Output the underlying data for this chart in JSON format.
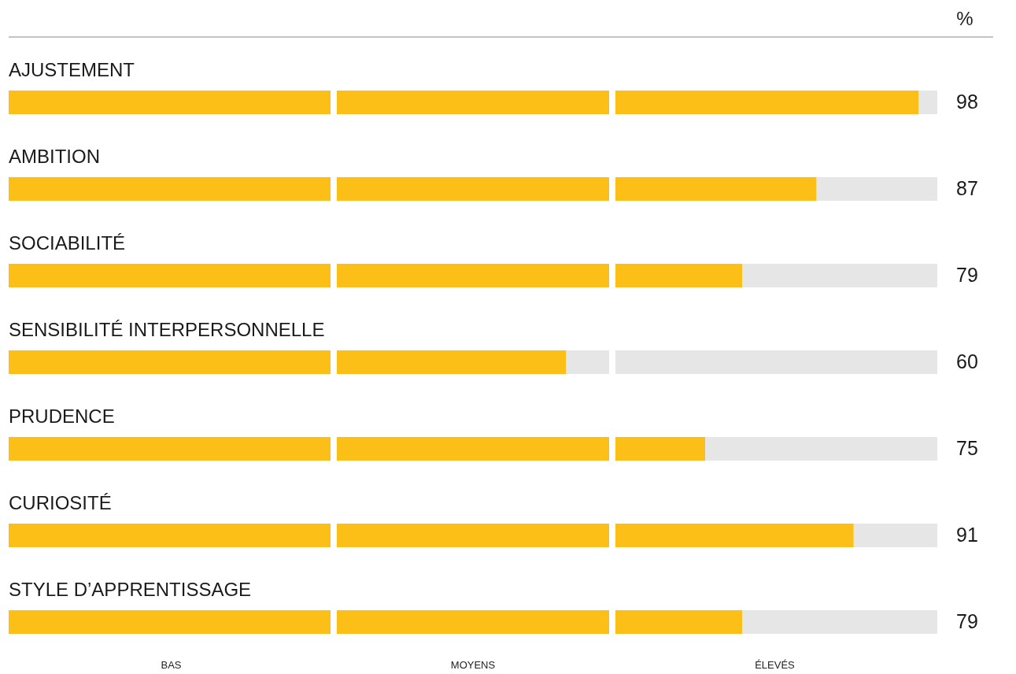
{
  "chart_data": {
    "type": "bar",
    "orientation": "horizontal",
    "stacked": true,
    "categories": [
      "AJUSTEMENT",
      "AMBITION",
      "SOCIABILITÉ",
      "SENSIBILITÉ INTERPERSONNELLE",
      "PRUDENCE",
      "CURIOSITÉ",
      "STYLE D’APPRENTISSAGE"
    ],
    "series": [
      {
        "color": "#fbbf17",
        "values": [
          98,
          87,
          79,
          60,
          75,
          91,
          79
        ],
        "value_labels": [
          "98",
          "87",
          "79",
          "60",
          "75",
          "91",
          "79"
        ]
      },
      {
        "color": "#e6e6e6",
        "values": [
          2,
          13,
          21,
          40,
          25,
          9,
          21
        ]
      }
    ],
    "xlim": [
      0,
      100
    ],
    "ref_lines": [
      {
        "axis": "x",
        "value": 35,
        "color": "#ffffff"
      },
      {
        "axis": "x",
        "value": 65,
        "color": "#ffffff"
      }
    ],
    "annotations": [
      "%",
      "BAS",
      "MOYENS",
      "ÉLEVÉS"
    ]
  }
}
